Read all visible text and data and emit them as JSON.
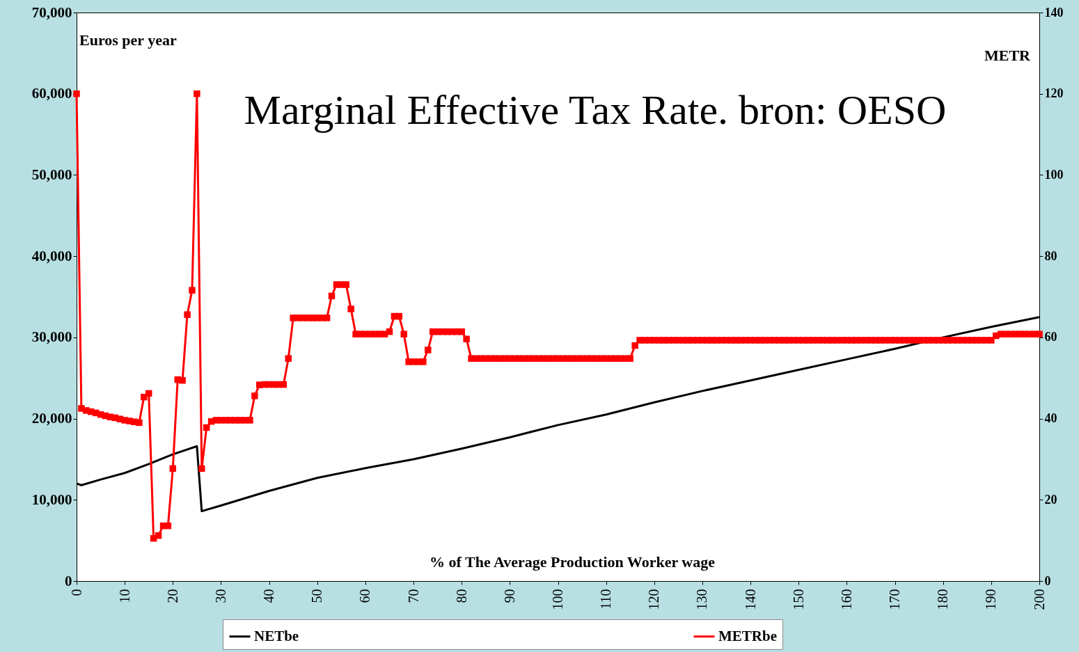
{
  "chart_data": {
    "type": "line",
    "title": "Marginal Effective Tax Rate. bron: OESO",
    "xlabel": "% of The Average Production Worker wage",
    "ylabel": "Euros per year",
    "y2label": "METR",
    "xlim": [
      0,
      200
    ],
    "xticks": [
      0,
      10,
      20,
      30,
      40,
      50,
      60,
      70,
      80,
      90,
      100,
      110,
      120,
      130,
      140,
      150,
      160,
      170,
      180,
      190,
      200
    ],
    "ylim": [
      0,
      70000
    ],
    "yticks": [
      0,
      {
        "value": 10000,
        "label": "10,000"
      },
      {
        "value": 20000,
        "label": "20,000"
      },
      {
        "value": 30000,
        "label": "30,000"
      },
      {
        "value": 40000,
        "label": "40,000"
      },
      {
        "value": 50000,
        "label": "50,000"
      },
      {
        "value": 60000,
        "label": "60,000"
      },
      {
        "value": 70000,
        "label": "70,000"
      }
    ],
    "y2lim": [
      0,
      140
    ],
    "y2ticks": [
      0,
      20,
      40,
      60,
      80,
      100,
      120,
      140
    ],
    "grid": false,
    "legend": "bottom",
    "series": [
      {
        "name": "NETbe",
        "color": "#000000",
        "marker": "none",
        "x": [
          0,
          1,
          5,
          10,
          15,
          20,
          25,
          26,
          30,
          40,
          50,
          60,
          70,
          80,
          90,
          100,
          110,
          120,
          130,
          140,
          150,
          160,
          170,
          180,
          190,
          200
        ],
        "values": [
          12000,
          11800,
          12500,
          13300,
          14400,
          15600,
          16600,
          8600,
          9300,
          11100,
          12700,
          13900,
          15000,
          16300,
          17700,
          19200,
          20500,
          22000,
          23400,
          24700,
          26000,
          27300,
          28600,
          30000,
          31300,
          32500
        ]
      },
      {
        "name": "METRbe",
        "color": "#ff0000",
        "marker": "square",
        "axis": "y2",
        "x": [
          0,
          1,
          2,
          3,
          4,
          5,
          6,
          7,
          8,
          9,
          10,
          11,
          12,
          13,
          14,
          15,
          16,
          17,
          18,
          19,
          20,
          21,
          22,
          23,
          24,
          25,
          26,
          27,
          28,
          29,
          30,
          31,
          32,
          33,
          34,
          35,
          36,
          37,
          38,
          39,
          40,
          41,
          42,
          43,
          44,
          45,
          46,
          47,
          48,
          49,
          50,
          51,
          52,
          53,
          54,
          55,
          56,
          57,
          58,
          59,
          60,
          61,
          62,
          63,
          64,
          65,
          66,
          67,
          68,
          69,
          70,
          71,
          72,
          73,
          74,
          75,
          76,
          77,
          78,
          79,
          80,
          81,
          82,
          83,
          84,
          85,
          86,
          87,
          88,
          89,
          90,
          91,
          92,
          93,
          94,
          95,
          96,
          97,
          98,
          99,
          100,
          101,
          102,
          103,
          104,
          105,
          106,
          107,
          108,
          109,
          110,
          111,
          112,
          113,
          114,
          115,
          116,
          117,
          118,
          119,
          120,
          121,
          122,
          123,
          124,
          125,
          126,
          127,
          128,
          129,
          130,
          131,
          132,
          133,
          134,
          135,
          136,
          137,
          138,
          139,
          140,
          141,
          142,
          143,
          144,
          145,
          146,
          147,
          148,
          149,
          150,
          151,
          152,
          153,
          154,
          155,
          156,
          157,
          158,
          159,
          160,
          161,
          162,
          163,
          164,
          165,
          166,
          167,
          168,
          169,
          170,
          171,
          172,
          173,
          174,
          175,
          176,
          177,
          178,
          179,
          180,
          181,
          182,
          183,
          184,
          185,
          186,
          187,
          188,
          189,
          190,
          191,
          192,
          193,
          194,
          195,
          196,
          197,
          198,
          199,
          200
        ],
        "values": [
          120,
          42.5,
          42,
          41.7,
          41.4,
          41,
          40.7,
          40.4,
          40.2,
          39.9,
          39.6,
          39.4,
          39.2,
          39,
          45.3,
          46.2,
          10.5,
          11.2,
          13.6,
          13.6,
          27.7,
          49.6,
          49.4,
          65.6,
          71.6,
          120,
          27.7,
          37.8,
          39.3,
          39.6,
          39.6,
          39.6,
          39.6,
          39.6,
          39.6,
          39.6,
          39.6,
          45.6,
          48.3,
          48.4,
          48.4,
          48.4,
          48.4,
          48.4,
          54.8,
          64.8,
          64.8,
          64.8,
          64.8,
          64.8,
          64.8,
          64.8,
          64.8,
          70.2,
          73,
          73,
          73,
          67,
          60.8,
          60.8,
          60.8,
          60.8,
          60.8,
          60.8,
          60.8,
          61.4,
          65.2,
          65.2,
          60.8,
          54,
          54,
          54,
          54,
          56.9,
          61.4,
          61.4,
          61.4,
          61.4,
          61.4,
          61.4,
          61.4,
          59.6,
          54.8,
          54.8,
          54.8,
          54.8,
          54.8,
          54.8,
          54.8,
          54.8,
          54.8,
          54.8,
          54.8,
          54.8,
          54.8,
          54.8,
          54.8,
          54.8,
          54.8,
          54.8,
          54.8,
          54.8,
          54.8,
          54.8,
          54.8,
          54.8,
          54.8,
          54.8,
          54.8,
          54.8,
          54.8,
          54.8,
          54.8,
          54.8,
          54.8,
          54.8,
          58,
          59.3,
          59.3,
          59.3,
          59.3,
          59.3,
          59.3,
          59.3,
          59.3,
          59.3,
          59.3,
          59.3,
          59.3,
          59.3,
          59.3,
          59.3,
          59.3,
          59.3,
          59.3,
          59.3,
          59.3,
          59.3,
          59.3,
          59.3,
          59.3,
          59.3,
          59.3,
          59.3,
          59.3,
          59.3,
          59.3,
          59.3,
          59.3,
          59.3,
          59.3,
          59.3,
          59.3,
          59.3,
          59.3,
          59.3,
          59.3,
          59.3,
          59.3,
          59.3,
          59.3,
          59.3,
          59.3,
          59.3,
          59.3,
          59.3,
          59.3,
          59.3,
          59.3,
          59.3,
          59.3,
          59.3,
          59.3,
          59.3,
          59.3,
          59.3,
          59.3,
          59.3,
          59.3,
          59.3,
          59.3,
          59.3,
          59.3,
          59.3,
          59.3,
          59.3,
          59.3,
          59.3,
          59.3,
          59.3,
          59.3,
          60.4,
          60.8,
          60.8,
          60.8,
          60.8,
          60.8,
          60.8,
          60.8,
          60.8,
          60.8
        ]
      }
    ]
  }
}
